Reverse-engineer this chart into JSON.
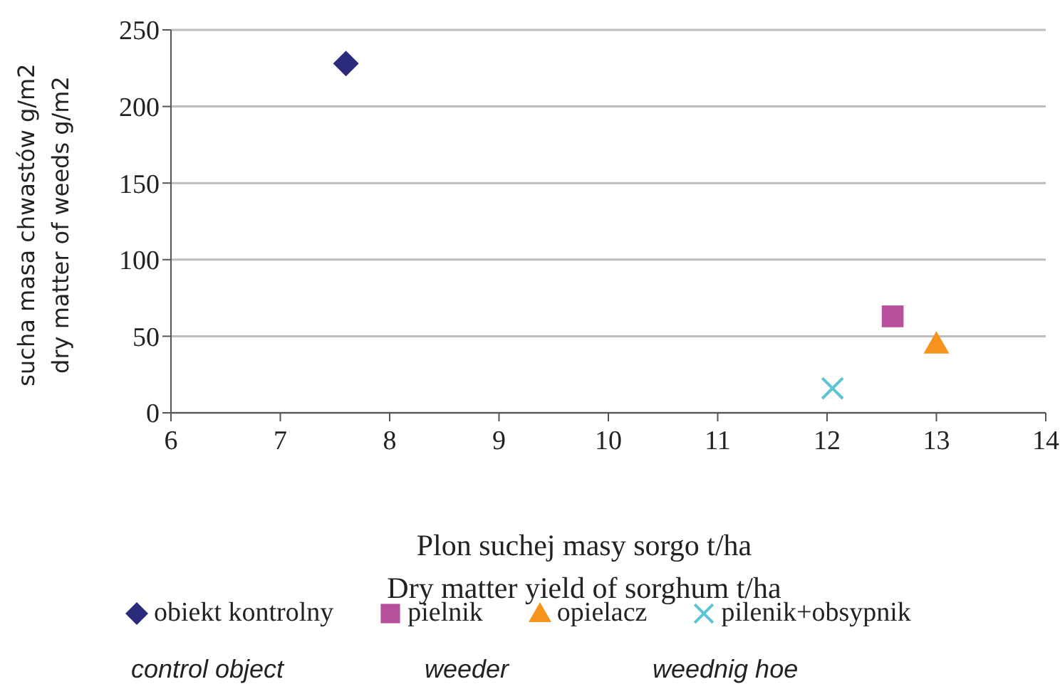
{
  "chart_data": {
    "type": "scatter",
    "xlabel": "Plon suchej masy sorgo t/ha\nDry matter yield of sorghum t/ha",
    "ylabel": "sucha masa chwastów g/m2\ndry matter of weeds g/m2",
    "xlim": [
      6,
      14
    ],
    "xticks": [
      6,
      7,
      8,
      9,
      10,
      11,
      12,
      13,
      14
    ],
    "ylim": [
      0,
      250
    ],
    "yticks": [
      0,
      50,
      100,
      150,
      200,
      250
    ],
    "grid": "y",
    "legend": "bottom",
    "series": [
      {
        "name": "obiekt kontrolny",
        "color": "#2b2b7b",
        "marker": "diamond",
        "x": [
          7.6
        ],
        "values": [
          228
        ]
      },
      {
        "name": "pielnik",
        "color": "#b8509e",
        "marker": "square",
        "x": [
          12.6
        ],
        "values": [
          63
        ]
      },
      {
        "name": "opielacz",
        "color": "#f7941d",
        "marker": "triangle",
        "x": [
          13.0
        ],
        "values": [
          45
        ]
      },
      {
        "name": "pilenik+obsypnik",
        "color": "#5bc5d6",
        "marker": "cross",
        "x": [
          12.05
        ],
        "values": [
          16
        ]
      }
    ],
    "annotations": [
      "control object",
      "weeder",
      "weednig hoe"
    ]
  }
}
